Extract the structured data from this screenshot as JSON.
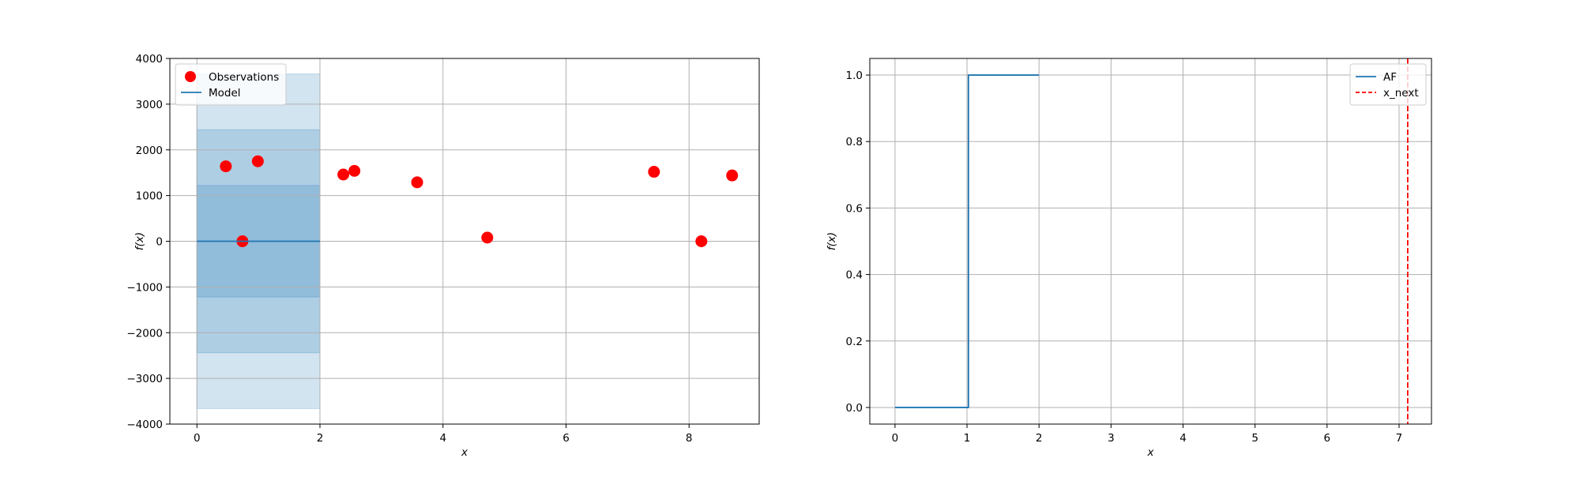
{
  "chart_data": [
    {
      "type": "scatter",
      "title": "",
      "xlabel": "x",
      "ylabel": "f(x)",
      "xlim": [
        -0.44,
        9.14
      ],
      "ylim": [
        -4000,
        4000
      ],
      "xticks": [
        0,
        2,
        4,
        6,
        8
      ],
      "yticks": [
        -4000,
        -3000,
        -2000,
        -1000,
        0,
        1000,
        2000,
        3000,
        4000
      ],
      "grid": true,
      "legend": {
        "placement": "top-left",
        "entries": [
          "Observations",
          "Model"
        ]
      },
      "series": [
        {
          "name": "Observations",
          "kind": "points",
          "color": "#ff0000",
          "x": [
            0.47,
            0.74,
            0.99,
            2.38,
            2.56,
            3.58,
            4.72,
            7.43,
            8.2,
            8.7
          ],
          "y": [
            1640,
            0,
            1750,
            1460,
            1540,
            1290,
            80,
            1520,
            0,
            1440
          ]
        },
        {
          "name": "Model",
          "kind": "line",
          "color": "#1f77b4",
          "x": [
            0,
            2
          ],
          "y": [
            0,
            0
          ]
        }
      ],
      "bands": {
        "color": "#1f77b4",
        "x": [
          0,
          2
        ],
        "levels": [
          {
            "lower": -1220,
            "upper": 1220,
            "opacity": 0.2
          },
          {
            "lower": -2440,
            "upper": 2440,
            "opacity": 0.2
          },
          {
            "lower": -3660,
            "upper": 3660,
            "opacity": 0.2
          }
        ]
      }
    },
    {
      "type": "line",
      "title": "",
      "xlabel": "x",
      "ylabel": "f(x)",
      "xlim": [
        -0.35,
        7.45
      ],
      "ylim": [
        -0.05,
        1.05
      ],
      "xticks": [
        0,
        1,
        2,
        3,
        4,
        5,
        6,
        7
      ],
      "yticks": [
        0.0,
        0.2,
        0.4,
        0.6,
        0.8,
        1.0
      ],
      "ytick_decimals": 1,
      "grid": true,
      "legend": {
        "placement": "top-right",
        "entries": [
          "AF",
          "x_next"
        ]
      },
      "series": [
        {
          "name": "AF",
          "kind": "line",
          "color": "#1f77b4",
          "x": [
            0,
            1.02,
            1.02,
            2
          ],
          "y": [
            0,
            0,
            1,
            1
          ]
        },
        {
          "name": "x_next",
          "kind": "vline",
          "color": "#ff0000",
          "x": 7.12
        }
      ]
    }
  ]
}
